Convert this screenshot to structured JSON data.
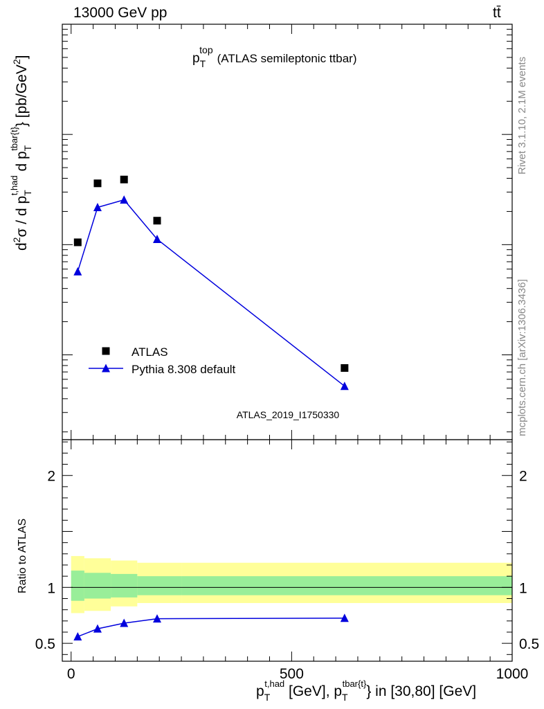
{
  "header": {
    "energy": "13000 GeV pp",
    "process": "tt̄"
  },
  "side_text": {
    "rivet": "Rivet 3.1.10,  2.1M events",
    "mcplots": "mcplots.cern.ch [arXiv:1306.3436]"
  },
  "chart_data": [
    {
      "type": "scatter",
      "title": "p_T^top (ATLAS semileptonic ttbar)",
      "title_main": "p",
      "title_sub": "T",
      "title_sup": "top",
      "title_rest": "(ATLAS semileptonic ttbar)",
      "analysis_id": "ATLAS_2019_I1750330",
      "ylabel": "d²σ / d p_T^{t,had} d p_T^{tbar{t}} [pb/GeV²]",
      "yscale": "log",
      "xlim": [
        -20,
        1000
      ],
      "ylim": [
        1.7e-05,
        0.1
      ],
      "y_ticks": [
        "10^{-4}",
        "10^{-3}",
        "10^{-2}"
      ],
      "legend_position": "bottom-left",
      "series": [
        {
          "name": "ATLAS",
          "marker": "square",
          "color": "#000000",
          "x": [
            15,
            60,
            120,
            195,
            620
          ],
          "y": [
            0.00105,
            0.0036,
            0.0039,
            0.00165,
            7.6e-05
          ]
        },
        {
          "name": "Pythia 8.308 default",
          "marker": "triangle",
          "color": "#0000dd",
          "line": true,
          "x": [
            15,
            60,
            120,
            195,
            620
          ],
          "y": [
            0.00057,
            0.00218,
            0.00255,
            0.00112,
            5.2e-05
          ]
        }
      ]
    },
    {
      "type": "line",
      "ylabel": "Ratio to ATLAS",
      "xlabel": "p_T^{t,had} [GeV], p_T^{tbar{t}} in [30,80] [GeV]",
      "xlim": [
        -20,
        1000
      ],
      "ylim": [
        0.34,
        2.32
      ],
      "x_ticks": [
        "0",
        "500",
        "1000"
      ],
      "y_ticks": [
        "0.5",
        "1",
        "2"
      ],
      "bands": {
        "edges": [
          0,
          30,
          90,
          150,
          250,
          1000
        ],
        "stat": {
          "color": "#99ee99",
          "lo": [
            0.88,
            0.9,
            0.91,
            0.93,
            0.93
          ],
          "hi": [
            1.15,
            1.13,
            1.12,
            1.1,
            1.1
          ]
        },
        "total": {
          "color": "#ffff99",
          "lo": [
            0.77,
            0.79,
            0.83,
            0.86,
            0.86
          ],
          "hi": [
            1.28,
            1.26,
            1.24,
            1.22,
            1.22
          ]
        }
      },
      "series": [
        {
          "name": "Pythia 8.308 default",
          "color": "#0000dd",
          "x": [
            15,
            60,
            120,
            195,
            620
          ],
          "y": [
            0.56,
            0.63,
            0.68,
            0.72,
            0.725
          ]
        }
      ]
    }
  ]
}
